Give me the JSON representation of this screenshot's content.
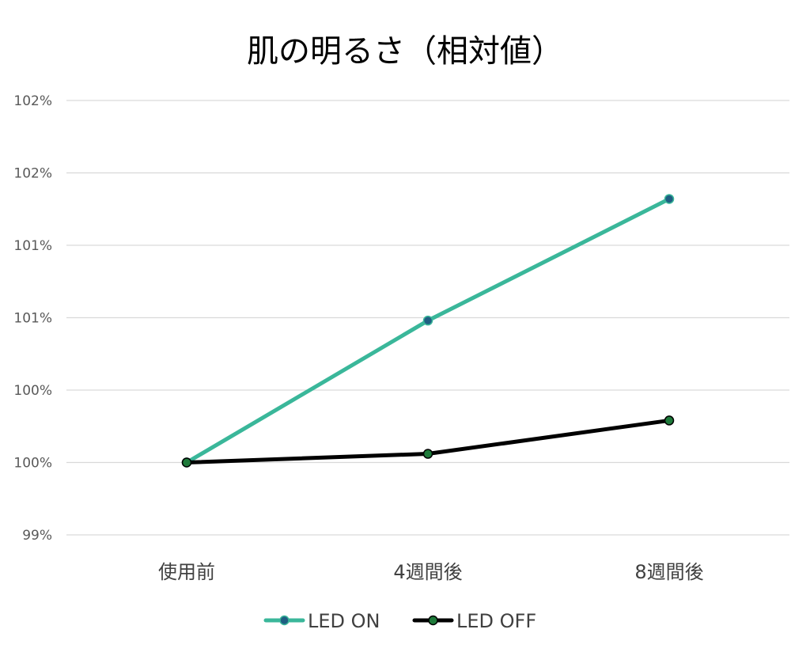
{
  "chart_data": {
    "type": "line",
    "title": "肌の明るさ（相対値）",
    "xlabel": "",
    "ylabel": "",
    "categories": [
      "使用前",
      "4週間後",
      "8週間後"
    ],
    "y_tick_labels": [
      "99%",
      "100%",
      "100%",
      "101%",
      "101%",
      "102%",
      "102%"
    ],
    "ylim": [
      0.995,
      1.025
    ],
    "grid": true,
    "legend_position": "bottom",
    "series": [
      {
        "name": "LED ON",
        "values": [
          1.0,
          1.0098,
          1.0182
        ],
        "line_color": "#3ab79a",
        "marker_color": "#1f5f82"
      },
      {
        "name": "LED OFF",
        "values": [
          1.0,
          1.0006,
          1.0029
        ],
        "line_color": "#000000",
        "marker_color": "#1e7a3a"
      }
    ]
  }
}
